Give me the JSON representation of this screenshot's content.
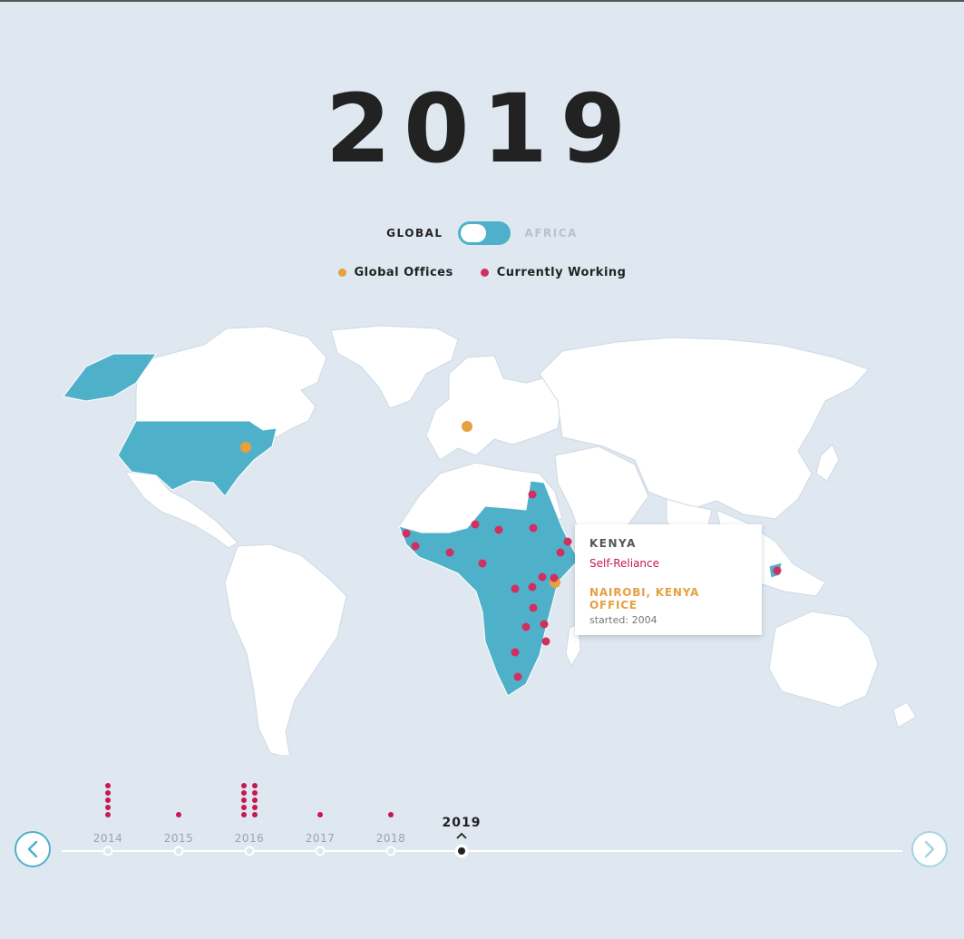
{
  "header": {
    "year": "2019"
  },
  "toggle": {
    "left_label": "GLOBAL",
    "right_label": "AFRICA",
    "selected": "GLOBAL"
  },
  "legend": [
    {
      "label": "Global Offices",
      "color": "#e6a040"
    },
    {
      "label": "Currently Working",
      "color": "#d12f5f"
    }
  ],
  "colors": {
    "highlight_country": "#4fb1c9",
    "land": "#ffffff",
    "water": "#dfe8f1",
    "accent": "#4fb1c9"
  },
  "tooltip": {
    "country": "KENYA",
    "program": "Self-Reliance",
    "office": "NAIROBI, KENYA OFFICE",
    "started": "started: 2004"
  },
  "timeline": {
    "years": [
      {
        "label": "2014",
        "count": 5
      },
      {
        "label": "2015",
        "count": 1
      },
      {
        "label": "2016",
        "count": 10
      },
      {
        "label": "2017",
        "count": 1
      },
      {
        "label": "2018",
        "count": 1
      }
    ],
    "current": "2019",
    "prev_icon": "chevron-left-icon",
    "next_icon": "chevron-right-icon"
  }
}
